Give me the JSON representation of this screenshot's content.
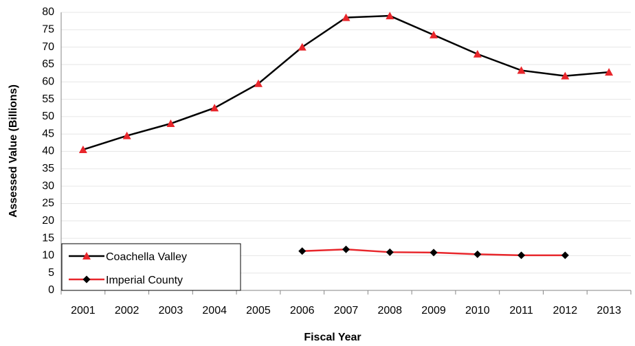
{
  "chart_data": {
    "type": "line",
    "x_label": "Fiscal Year",
    "y_label": "Assessed Value (Billions)",
    "categories": [
      "2001",
      "2002",
      "2003",
      "2004",
      "2005",
      "2006",
      "2007",
      "2008",
      "2009",
      "2010",
      "2011",
      "2012",
      "2013"
    ],
    "series": [
      {
        "name": "Coachella Valley",
        "color": "#000000",
        "marker": "triangle",
        "marker_color": "#e8262b",
        "values": [
          40.5,
          44.5,
          48,
          52.5,
          59.5,
          70,
          78.5,
          79,
          73.5,
          68,
          63.3,
          61.7,
          62.8
        ]
      },
      {
        "name": "Imperial County",
        "color": "#e8262b",
        "marker": "diamond",
        "marker_color": "#000000",
        "values": [
          null,
          null,
          null,
          null,
          null,
          11.3,
          11.8,
          11,
          10.9,
          10.4,
          10.1,
          10.1,
          null
        ]
      }
    ],
    "ylim": [
      0,
      80
    ],
    "yticks": [
      0,
      5,
      10,
      15,
      20,
      25,
      30,
      35,
      40,
      45,
      50,
      55,
      60,
      65,
      70,
      75,
      80
    ],
    "grid": true,
    "legend": "lower left"
  }
}
